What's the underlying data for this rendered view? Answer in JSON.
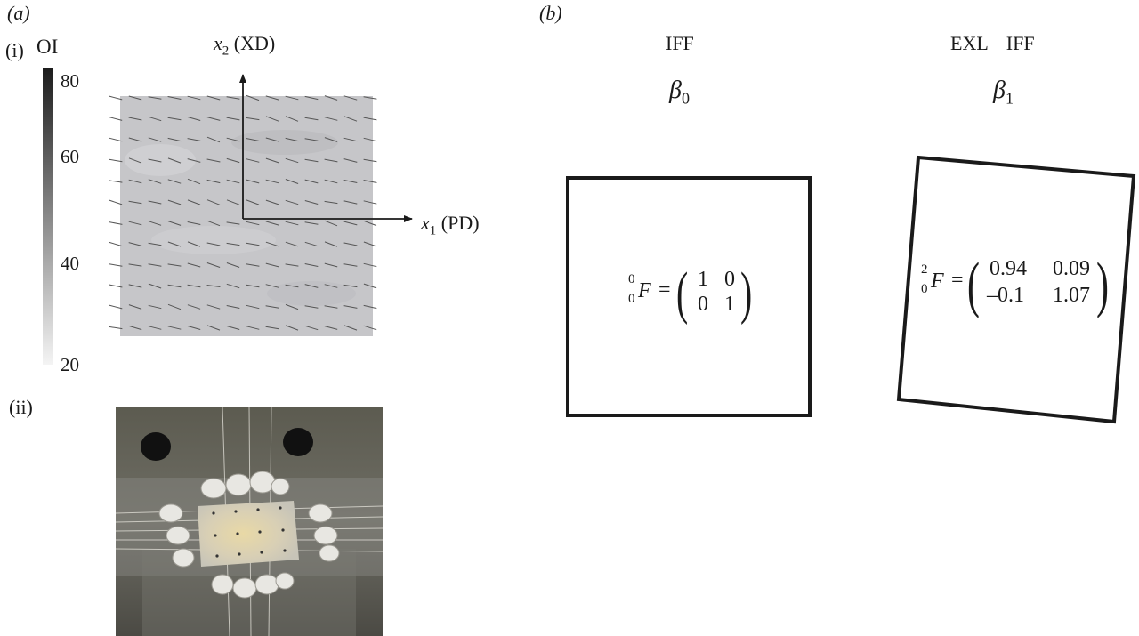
{
  "panel_a": {
    "label": "(a)",
    "sub_i": "(i)",
    "sub_ii": "(ii)",
    "colorbar": {
      "title": "OI",
      "ticks": [
        "80",
        "60",
        "40",
        "20"
      ],
      "range": [
        20,
        80
      ],
      "color_high": "#1c1c1c",
      "color_low": "#f4f4f4"
    },
    "axes": {
      "x1_var": "x",
      "x1_sub": "1",
      "x1_name": "(PD)",
      "x2_var": "x",
      "x2_sub": "2",
      "x2_name": "(XD)"
    },
    "map_colors": {
      "fill": "#c6c6c9",
      "fiber": "#555555"
    }
  },
  "panel_b": {
    "label": "(b)",
    "state0": {
      "header": "IFF",
      "beta_symbol": "β",
      "beta_sub": "0",
      "F_sup": "0",
      "F_sub": "0",
      "F_symbol": "F",
      "equals": "=",
      "matrix": [
        [
          "1",
          "0"
        ],
        [
          "0",
          "1"
        ]
      ]
    },
    "state1": {
      "header_left": "EXL",
      "header_right": "IFF",
      "beta_symbol": "β",
      "beta_sub": "1",
      "F_sup": "2",
      "F_sub": "0",
      "F_symbol": "F",
      "equals": "=",
      "matrix": [
        [
          "0.94",
          "0.09"
        ],
        [
          "–0.1",
          "1.07"
        ]
      ]
    }
  }
}
